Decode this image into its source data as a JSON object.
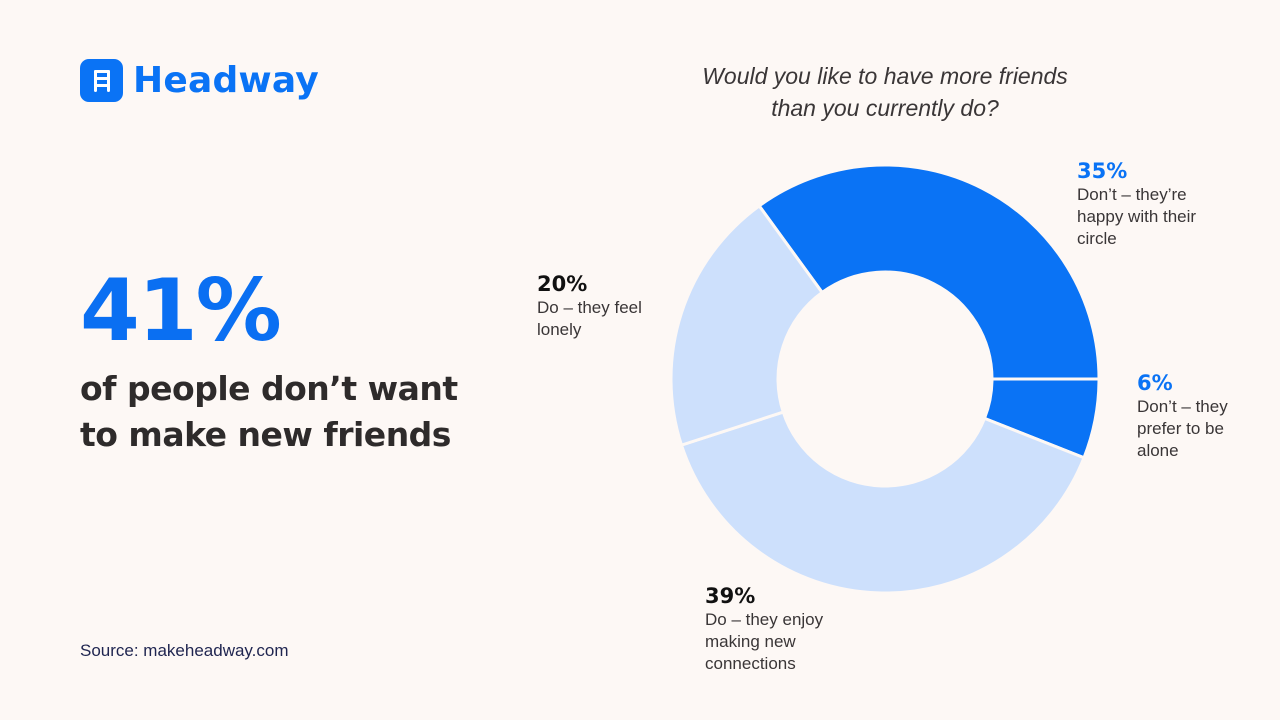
{
  "brand": {
    "name": "Headway",
    "icon": "ladder-icon",
    "color": "#0a73f5"
  },
  "headline": {
    "stat": "41%",
    "text": "of people don’t want to make new friends"
  },
  "source": "Source: makeheadway.com",
  "colors": {
    "background": "#fdf8f5",
    "primary": "#0a73f5",
    "secondary": "#cde0fc"
  },
  "chart_data": {
    "type": "pie",
    "variant": "donut",
    "title": "Would you like to have more friends than you currently do?",
    "categories": [
      "Don’t – they’re happy with their circle",
      "Don’t – they prefer to be alone",
      "Do – they enjoy making new connections",
      "Do – they feel lonely"
    ],
    "values": [
      35,
      6,
      39,
      20
    ],
    "colors": [
      "#0a73f5",
      "#0a73f5",
      "#cde0fc",
      "#cde0fc"
    ],
    "legend": "inline labels"
  },
  "labels": [
    {
      "pct": "35%",
      "text": "Don’t – they’re happy with their circle"
    },
    {
      "pct": "6%",
      "text": "Don’t – they prefer to be alone"
    },
    {
      "pct": "39%",
      "text": "Do – they enjoy making new connections"
    },
    {
      "pct": "20%",
      "text": "Do – they feel lonely"
    }
  ]
}
